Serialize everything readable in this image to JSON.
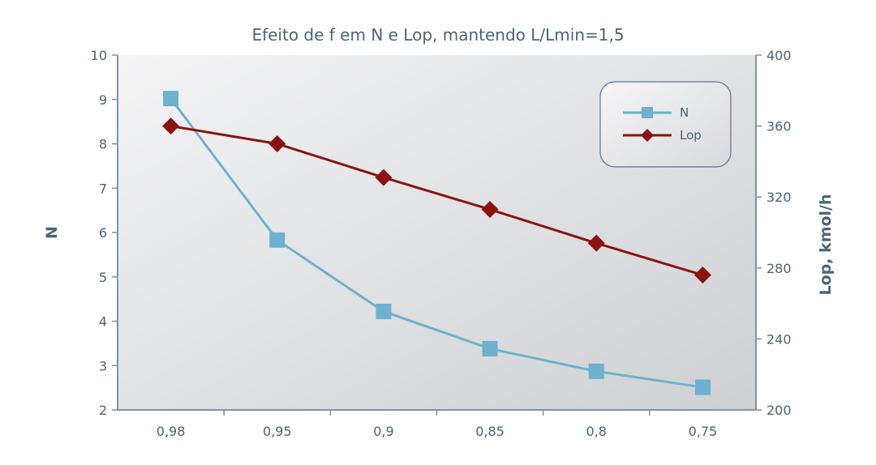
{
  "chart_data": {
    "type": "line",
    "title": "Efeito de f em N e Lop, mantendo L/Lmin=1,5",
    "categories": [
      "0,98",
      "0,95",
      "0,9",
      "0,85",
      "0,8",
      "0,75"
    ],
    "y_left": {
      "label": "N",
      "min": 2,
      "max": 10,
      "ticks": [
        "2",
        "3",
        "4",
        "5",
        "6",
        "7",
        "8",
        "9",
        "10"
      ]
    },
    "y_right": {
      "label": "Lop, kmol/h",
      "min": 200,
      "max": 400,
      "ticks": [
        "200",
        "240",
        "280",
        "320",
        "360",
        "400"
      ]
    },
    "series": [
      {
        "name": "N",
        "axis": "left",
        "color": "#6db1ce",
        "marker": "square",
        "values": [
          9.02,
          5.83,
          4.22,
          3.38,
          2.87,
          2.51
        ]
      },
      {
        "name": "Lop",
        "axis": "right",
        "color": "#8c1212",
        "marker": "diamond",
        "values": [
          360,
          350,
          331,
          313,
          294,
          276
        ]
      }
    ],
    "legend_position": "top-right",
    "grid": false
  }
}
